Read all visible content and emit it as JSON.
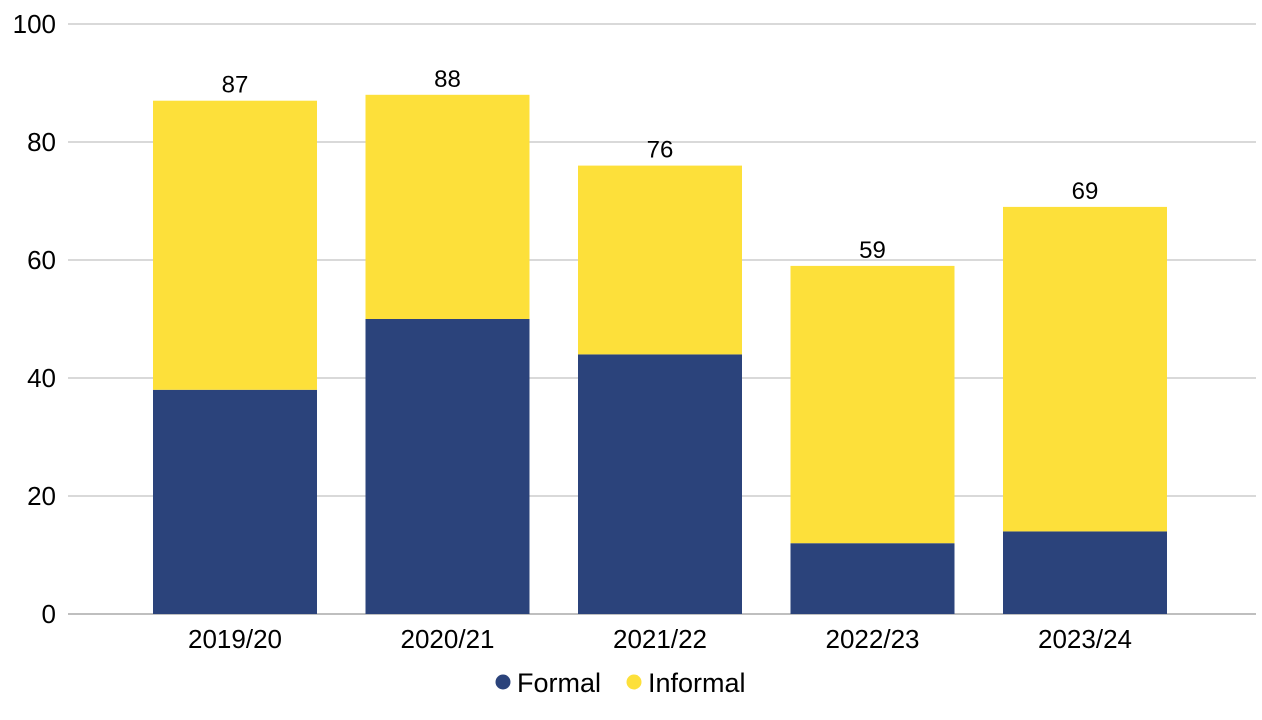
{
  "chart_data": {
    "type": "bar",
    "stacked": true,
    "categories": [
      "2019/20",
      "2020/21",
      "2021/22",
      "2022/23",
      "2023/24"
    ],
    "series": [
      {
        "name": "Formal",
        "color": "#2b437b",
        "values": [
          38,
          50,
          44,
          12,
          14
        ]
      },
      {
        "name": "Informal",
        "color": "#fde03a",
        "values": [
          49,
          38,
          32,
          47,
          55
        ]
      }
    ],
    "totals": [
      87,
      88,
      76,
      59,
      69
    ],
    "total_labels": [
      "87",
      "88",
      "76",
      "59",
      "69"
    ],
    "ylim": [
      0,
      100
    ],
    "yticks": [
      0,
      20,
      40,
      60,
      80,
      100
    ],
    "ytick_labels": [
      "0",
      "20",
      "40",
      "60",
      "80",
      "100"
    ],
    "grid": true,
    "legend_position": "bottom",
    "title": "",
    "xlabel": "",
    "ylabel": ""
  },
  "legend": {
    "items": [
      {
        "label": "Formal",
        "color": "#2b437b"
      },
      {
        "label": "Informal",
        "color": "#fde03a"
      }
    ]
  }
}
